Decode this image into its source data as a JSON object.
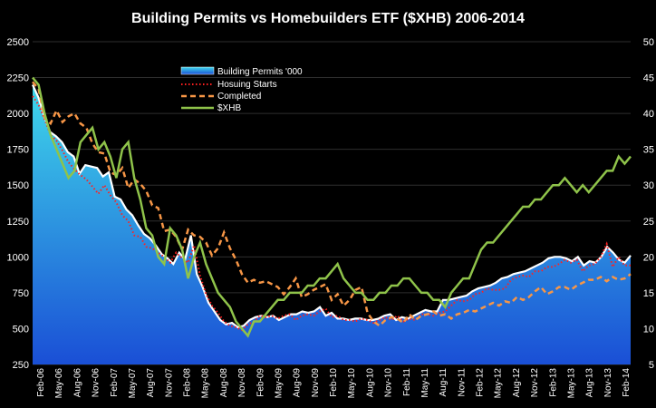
{
  "chart_data": {
    "type": "area+line",
    "title": "Building Permits vs Homebuilders ETF ($XHB) 2006-2014",
    "y_left": {
      "min": 250,
      "max": 2500,
      "ticks": [
        250,
        500,
        750,
        1000,
        1250,
        1500,
        1750,
        2000,
        2250,
        2500
      ]
    },
    "y_right": {
      "min": 5,
      "max": 50,
      "ticks": [
        5,
        10,
        15,
        20,
        25,
        30,
        35,
        40,
        45,
        50
      ]
    },
    "x_tick_labels": [
      "Feb-06",
      "May-06",
      "Aug-06",
      "Nov-06",
      "Feb-07",
      "May-07",
      "Aug-07",
      "Nov-07",
      "Feb-08",
      "May-08",
      "Aug-08",
      "Nov-08",
      "Feb-09",
      "May-09",
      "Aug-09",
      "Nov-09",
      "Feb-10",
      "May-10",
      "Aug-10",
      "Nov-10",
      "Feb-11",
      "May-11",
      "Aug-11",
      "Nov-11",
      "Feb-12",
      "May-12",
      "Aug-12",
      "Nov-12",
      "Feb-13",
      "May-13",
      "Aug-13",
      "Nov-13",
      "Feb-14"
    ],
    "legend": {
      "position": "top-left",
      "entries": [
        "Building Permits '000",
        "Hosuing Starts",
        "Completed",
        "$XHB"
      ]
    },
    "colors": {
      "permits_top": "#3fd8ea",
      "permits_bottom": "#1a4fd6",
      "permits_line": "#ffffff",
      "starts": "#ff2020",
      "completed": "#f79646",
      "xhb": "#8fc34a"
    },
    "series": [
      {
        "name": "Building Permits '000",
        "axis": "left",
        "kind": "area",
        "values": [
          2200,
          2110,
          1980,
          1870,
          1840,
          1800,
          1730,
          1700,
          1580,
          1640,
          1630,
          1620,
          1560,
          1590,
          1420,
          1400,
          1330,
          1290,
          1220,
          1160,
          1130,
          1080,
          1020,
          990,
          950,
          1030,
          980,
          1150,
          880,
          790,
          680,
          620,
          560,
          530,
          540,
          510,
          520,
          560,
          580,
          590,
          580,
          590,
          560,
          580,
          600,
          600,
          620,
          610,
          620,
          650,
          590,
          610,
          570,
          570,
          560,
          570,
          570,
          560,
          560,
          570,
          590,
          600,
          560,
          580,
          570,
          590,
          610,
          630,
          620,
          620,
          700,
          700,
          710,
          720,
          730,
          760,
          780,
          790,
          800,
          820,
          850,
          860,
          880,
          890,
          900,
          920,
          940,
          960,
          990,
          1000,
          1000,
          990,
          970,
          1000,
          940,
          970,
          960,
          1000,
          1070,
          1030,
          980,
          960,
          1010
        ]
      },
      {
        "name": "Hosuing Starts",
        "axis": "left",
        "kind": "dotted",
        "values": [
          2120,
          2060,
          1960,
          1850,
          1810,
          1740,
          1660,
          1610,
          1570,
          1540,
          1490,
          1440,
          1500,
          1430,
          1380,
          1290,
          1250,
          1150,
          1140,
          1070,
          1060,
          1030,
          1000,
          960,
          1030,
          990,
          960,
          1080,
          870,
          740,
          660,
          610,
          550,
          520,
          510,
          490,
          530,
          550,
          590,
          580,
          590,
          570,
          590,
          600,
          560,
          590,
          600,
          590,
          620,
          640,
          580,
          590,
          560,
          560,
          550,
          570,
          560,
          540,
          560,
          580,
          560,
          590,
          550,
          570,
          560,
          600,
          600,
          590,
          610,
          620,
          660,
          700,
          690,
          700,
          740,
          750,
          780,
          770,
          770,
          780,
          840,
          860,
          870,
          860,
          900,
          900,
          930,
          930,
          950,
          980,
          960,
          980,
          900,
          940,
          950,
          1000,
          1090,
          930,
          1000,
          940,
          940
        ]
      },
      {
        "name": "Completed",
        "axis": "left",
        "kind": "dashed",
        "values": [
          2220,
          2170,
          1970,
          1930,
          2020,
          1940,
          1980,
          2000,
          1930,
          1900,
          1790,
          1730,
          1720,
          1590,
          1570,
          1620,
          1480,
          1540,
          1510,
          1460,
          1360,
          1340,
          1180,
          1190,
          1140,
          1050,
          1190,
          1150,
          1140,
          1100,
          1010,
          1060,
          1170,
          1060,
          980,
          880,
          820,
          840,
          820,
          830,
          810,
          790,
          740,
          790,
          850,
          720,
          740,
          770,
          790,
          810,
          700,
          740,
          660,
          700,
          770,
          790,
          610,
          550,
          520,
          560,
          580,
          570,
          540,
          600,
          560,
          590,
          600,
          620,
          590,
          600,
          570,
          600,
          610,
          630,
          620,
          640,
          660,
          680,
          660,
          690,
          680,
          720,
          700,
          720,
          760,
          790,
          740,
          760,
          790,
          790,
          770,
          800,
          820,
          840,
          840,
          860,
          830,
          860,
          840,
          850,
          880
        ]
      },
      {
        "name": "$XHB",
        "axis": "right",
        "kind": "solid",
        "values": [
          45,
          44,
          40,
          37,
          35,
          33,
          31,
          32,
          36,
          37,
          38,
          35,
          36,
          34,
          31,
          35,
          36,
          31,
          28,
          24,
          23,
          20,
          19,
          24,
          23,
          21,
          17,
          20,
          22,
          19,
          17,
          15,
          14,
          13,
          11,
          10,
          9,
          11,
          11,
          12,
          13,
          14,
          14,
          15,
          15,
          15,
          16,
          16,
          17,
          17,
          18,
          19,
          17,
          16,
          15,
          15,
          14,
          14,
          15,
          15,
          16,
          16,
          17,
          17,
          16,
          15,
          15,
          14,
          14,
          13,
          15,
          16,
          17,
          17,
          19,
          21,
          22,
          22,
          23,
          24,
          25,
          26,
          27,
          27,
          28,
          28,
          29,
          30,
          30,
          31,
          30,
          29,
          30,
          29,
          30,
          31,
          32,
          32,
          34,
          33,
          34
        ]
      }
    ]
  }
}
